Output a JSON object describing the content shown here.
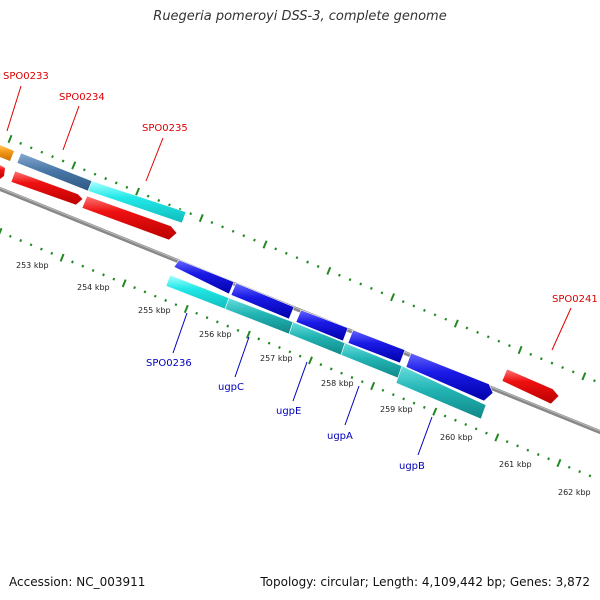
{
  "title": "Ruegeria pomeroyi DSS-3, complete genome",
  "footer": {
    "accession": "Accession: NC_003911",
    "topology": "Topology: circular; Length: 4,109,442 bp; Genes: 3,872"
  },
  "scale_labels": [
    "253 kbp",
    "254 kbp",
    "255 kbp",
    "256 kbp",
    "257 kbp",
    "258 kbp",
    "259 kbp",
    "260 kbp",
    "261 kbp",
    "262 kbp"
  ],
  "gene_labels_top": [
    "SPO0233",
    "SPO0234",
    "SPO0235",
    "SPO0241"
  ],
  "gene_labels_bottom": [
    "SPO0236",
    "ugpC",
    "ugpE",
    "ugpA",
    "ugpB"
  ],
  "colors": {
    "red": "#ee1111",
    "blue": "#1a1ae6",
    "cyan": "#22e8e8",
    "teal": "#22b4b4",
    "steel": "#4a78a8",
    "orange": "#f59a1a",
    "tick": "#228822",
    "backbone": "#888888",
    "label_red": "#dd0000",
    "label_blue": "#0000bb"
  }
}
